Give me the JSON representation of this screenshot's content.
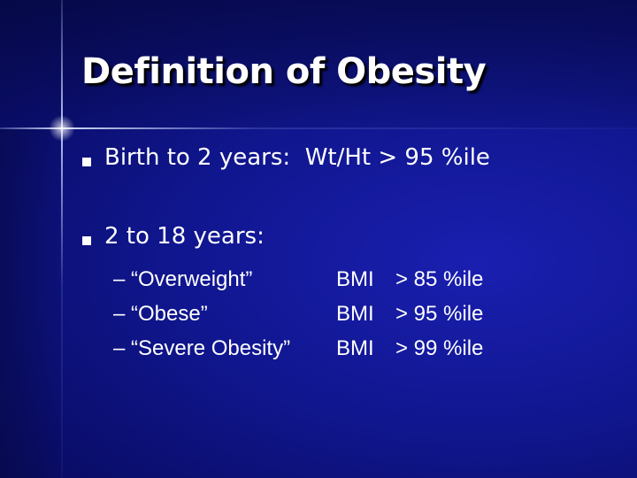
{
  "title": "Definition of Obesity",
  "bullets": [
    {
      "text": "Birth to 2 years:  Wt/Ht > 95 %ile"
    },
    {
      "text": "2 to 18 years:",
      "items": [
        {
          "label": "– “Overweight”",
          "measure": "BMI",
          "threshold": "> 85 %ile"
        },
        {
          "label": "– “Obese”",
          "measure": "BMI",
          "threshold": "> 95 %ile"
        },
        {
          "label": "– “Severe Obesity”",
          "measure": "BMI",
          "threshold": "> 99 %ile"
        }
      ]
    }
  ]
}
